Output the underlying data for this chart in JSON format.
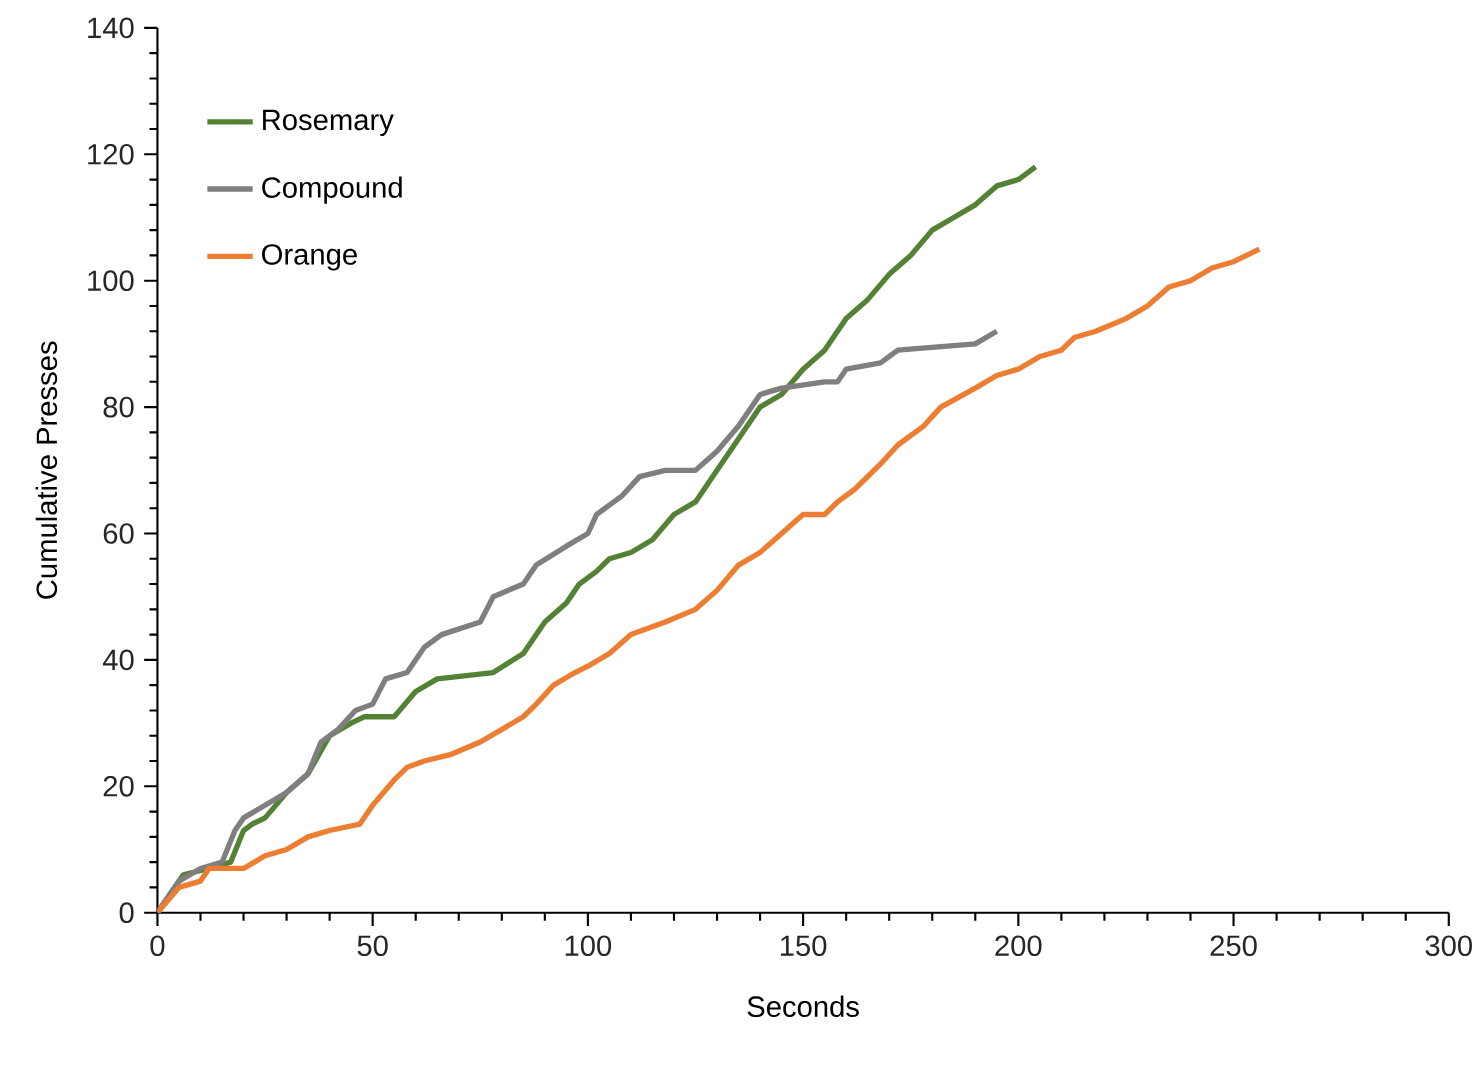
{
  "chart_data": {
    "type": "line",
    "xlabel": "Seconds",
    "ylabel": "Cumulative  Presses",
    "xlim": [
      0,
      300
    ],
    "ylim": [
      0,
      140
    ],
    "xticks": [
      0,
      50,
      100,
      150,
      200,
      250,
      300
    ],
    "yticks": [
      0,
      20,
      40,
      60,
      80,
      100,
      120,
      140
    ],
    "grid": false,
    "legend": "top left",
    "marker": "none",
    "line_style": "solid",
    "series": [
      {
        "name": "Rosemary",
        "color": "#548235",
        "x": [
          0,
          3,
          6,
          12,
          17,
          20,
          22,
          25,
          30,
          35,
          40,
          45,
          48,
          55,
          60,
          65,
          78,
          85,
          90,
          95,
          98,
          102,
          105,
          110,
          115,
          120,
          125,
          130,
          135,
          140,
          145,
          150,
          155,
          160,
          165,
          170,
          175,
          180,
          185,
          190,
          195,
          200,
          204
        ],
        "values": [
          0,
          3,
          6,
          7,
          8,
          13,
          14,
          15,
          19,
          22,
          28,
          30,
          31,
          31,
          35,
          37,
          38,
          41,
          46,
          49,
          52,
          54,
          56,
          57,
          59,
          63,
          65,
          70,
          75,
          80,
          82,
          86,
          89,
          94,
          97,
          101,
          104,
          108,
          110,
          112,
          115,
          116,
          118
        ]
      },
      {
        "name": "Compound",
        "color": "#7f7f7f",
        "x": [
          0,
          5,
          10,
          15,
          18,
          20,
          25,
          30,
          35,
          38,
          42,
          46,
          50,
          53,
          58,
          62,
          66,
          75,
          78,
          85,
          88,
          95,
          100,
          102,
          108,
          112,
          118,
          125,
          130,
          135,
          140,
          145,
          155,
          158,
          160,
          168,
          172,
          190,
          195
        ],
        "values": [
          0,
          5,
          7,
          8,
          13,
          15,
          17,
          19,
          22,
          27,
          29,
          32,
          33,
          37,
          38,
          42,
          44,
          46,
          50,
          52,
          55,
          58,
          60,
          63,
          66,
          69,
          70,
          70,
          73,
          77,
          82,
          83,
          84,
          84,
          86,
          87,
          89,
          90,
          92
        ]
      },
      {
        "name": "Orange",
        "color": "#ed7d31",
        "x": [
          0,
          5,
          10,
          12,
          15,
          20,
          25,
          30,
          35,
          40,
          47,
          50,
          55,
          58,
          62,
          68,
          75,
          80,
          85,
          88,
          92,
          97,
          100,
          105,
          110,
          118,
          125,
          130,
          135,
          140,
          145,
          150,
          155,
          158,
          162,
          168,
          172,
          178,
          182,
          190,
          195,
          200,
          205,
          210,
          213,
          218,
          225,
          230,
          235,
          240,
          245,
          250,
          256
        ],
        "values": [
          0,
          4,
          5,
          7,
          7,
          7,
          9,
          10,
          12,
          13,
          14,
          17,
          21,
          23,
          24,
          25,
          27,
          29,
          31,
          33,
          36,
          38,
          39,
          41,
          44,
          46,
          48,
          51,
          55,
          57,
          60,
          63,
          63,
          65,
          67,
          71,
          74,
          77,
          80,
          83,
          85,
          86,
          88,
          89,
          91,
          92,
          94,
          96,
          99,
          100,
          102,
          103,
          105
        ]
      }
    ]
  }
}
